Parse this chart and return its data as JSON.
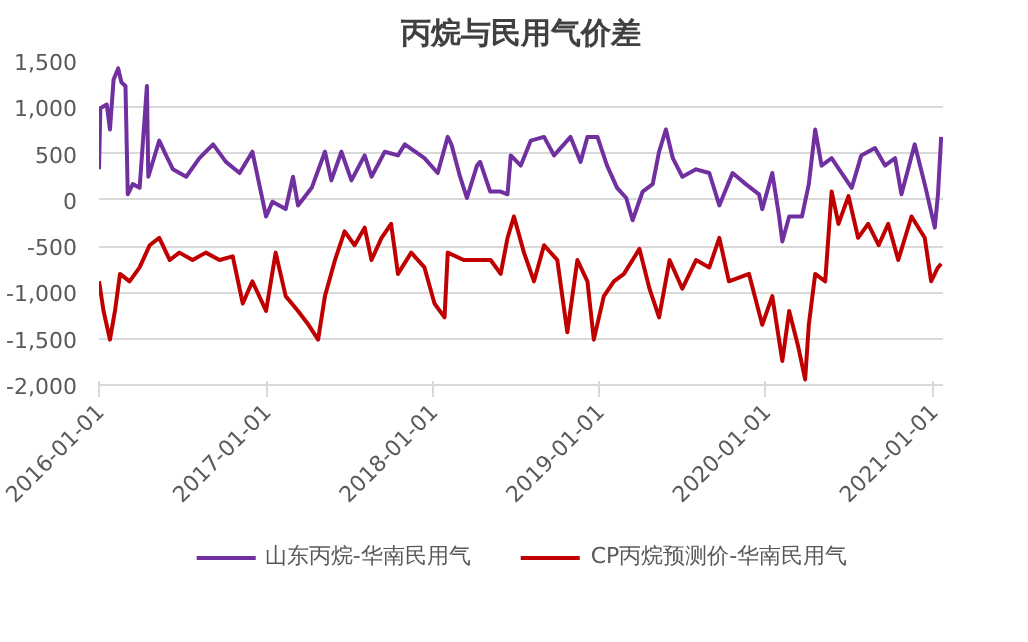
{
  "chart_data": {
    "type": "line",
    "title": "丙烷与民用气价差",
    "xlim": [
      "2016-01-01",
      "2021-01-23"
    ],
    "xticks": [
      "2016-01-01",
      "2017-01-01",
      "2018-01-01",
      "2019-01-01",
      "2020-01-01",
      "2021-01-01"
    ],
    "ylim": [
      -2000,
      1500
    ],
    "yticks": [
      {
        "value": -2000,
        "label": "-2,000"
      },
      {
        "value": -1500,
        "label": "-1,500"
      },
      {
        "value": -1000,
        "label": "-1,000"
      },
      {
        "value": -500,
        "label": "-500"
      },
      {
        "value": 0,
        "label": "0"
      },
      {
        "value": 500,
        "label": "500"
      },
      {
        "value": 1000,
        "label": "1,000"
      },
      {
        "value": 1500,
        "label": "1,500"
      }
    ],
    "grid": "y",
    "legend": "bottom",
    "line_style": "solid",
    "marker": "none",
    "series": [
      {
        "name": "山东丙烷-华南民用气",
        "color": "#7030a0",
        "x": [
          "2016-01-01",
          "2016-01-04",
          "2016-01-18",
          "2016-01-25",
          "2016-02-02",
          "2016-02-12",
          "2016-02-19",
          "2016-02-28",
          "2016-03-04",
          "2016-03-15",
          "2016-03-30",
          "2016-04-15",
          "2016-04-18",
          "2016-05-12",
          "2016-05-27",
          "2016-06-11",
          "2016-07-10",
          "2016-08-08",
          "2016-09-07",
          "2016-10-05",
          "2016-11-04",
          "2016-12-02",
          "2016-12-17",
          "2017-01-01",
          "2017-01-15",
          "2017-02-13",
          "2017-03-01",
          "2017-03-12",
          "2017-04-11",
          "2017-05-10",
          "2017-05-24",
          "2017-06-15",
          "2017-07-07",
          "2017-08-05",
          "2017-08-20",
          "2017-09-18",
          "2017-10-17",
          "2017-11-01",
          "2017-12-14",
          "2018-01-12",
          "2018-02-03",
          "2018-02-11",
          "2018-03-02",
          "2018-03-17",
          "2018-04-08",
          "2018-04-15",
          "2018-05-07",
          "2018-05-30",
          "2018-06-14",
          "2018-06-21",
          "2018-07-13",
          "2018-08-04",
          "2018-09-02",
          "2018-09-24",
          "2018-10-30",
          "2018-11-21",
          "2018-12-06",
          "2018-12-28",
          "2019-01-18",
          "2019-02-09",
          "2019-03-01",
          "2019-03-15",
          "2019-04-06",
          "2019-04-28",
          "2019-05-12",
          "2019-05-27",
          "2019-06-11",
          "2019-07-02",
          "2019-08-01",
          "2019-08-30",
          "2019-09-21",
          "2019-10-20",
          "2019-11-18",
          "2019-12-17",
          "2019-12-24",
          "2020-01-15",
          "2020-01-30",
          "2020-02-06",
          "2020-02-21",
          "2020-03-20",
          "2020-04-04",
          "2020-04-18",
          "2020-05-02",
          "2020-05-24",
          "2020-06-15",
          "2020-07-07",
          "2020-07-28",
          "2020-08-27",
          "2020-09-18",
          "2020-10-10",
          "2020-10-24",
          "2020-11-22",
          "2020-12-14",
          "2021-01-05",
          "2021-01-12",
          "2021-01-19"
        ],
        "values": [
          330,
          990,
          1030,
          760,
          1300,
          1420,
          1270,
          1230,
          60,
          170,
          130,
          1230,
          250,
          640,
          480,
          330,
          250,
          450,
          600,
          410,
          290,
          520,
          170,
          -180,
          -20,
          -100,
          250,
          -60,
          130,
          520,
          210,
          520,
          210,
          480,
          250,
          520,
          480,
          600,
          450,
          290,
          680,
          600,
          250,
          20,
          370,
          410,
          90,
          90,
          60,
          480,
          370,
          640,
          680,
          480,
          680,
          410,
          680,
          680,
          370,
          130,
          20,
          -220,
          90,
          170,
          520,
          760,
          450,
          250,
          330,
          290,
          -60,
          290,
          170,
          60,
          -100,
          290,
          -180,
          -450,
          -180,
          -180,
          170,
          760,
          370,
          450,
          290,
          130,
          480,
          560,
          370,
          450,
          60,
          600,
          170,
          -300,
          60,
          680
        ]
      },
      {
        "name": "CP丙烷预测价-华南民用气",
        "color": "#c00000",
        "x": [
          "2016-01-01",
          "2016-01-11",
          "2016-01-25",
          "2016-02-05",
          "2016-02-16",
          "2016-03-08",
          "2016-03-30",
          "2016-04-21",
          "2016-05-12",
          "2016-06-04",
          "2016-06-25",
          "2016-07-24",
          "2016-08-22",
          "2016-09-21",
          "2016-10-20",
          "2016-11-11",
          "2016-12-02",
          "2017-01-01",
          "2017-01-22",
          "2017-02-13",
          "2017-03-12",
          "2017-04-04",
          "2017-04-25",
          "2017-05-10",
          "2017-06-01",
          "2017-06-22",
          "2017-07-14",
          "2017-08-05",
          "2017-08-20",
          "2017-09-11",
          "2017-10-02",
          "2017-10-17",
          "2017-11-15",
          "2017-12-14",
          "2018-01-05",
          "2018-01-27",
          "2018-02-03",
          "2018-03-10",
          "2018-04-08",
          "2018-05-08",
          "2018-05-30",
          "2018-06-14",
          "2018-06-28",
          "2018-07-20",
          "2018-08-11",
          "2018-09-02",
          "2018-10-01",
          "2018-10-23",
          "2018-11-14",
          "2018-12-06",
          "2018-12-20",
          "2019-01-11",
          "2019-02-02",
          "2019-02-24",
          "2019-03-30",
          "2019-04-21",
          "2019-05-12",
          "2019-06-04",
          "2019-07-02",
          "2019-08-01",
          "2019-08-30",
          "2019-09-21",
          "2019-10-12",
          "2019-11-25",
          "2019-12-24",
          "2020-01-15",
          "2020-02-06",
          "2020-02-21",
          "2020-03-12",
          "2020-03-27",
          "2020-04-04",
          "2020-04-18",
          "2020-05-10",
          "2020-05-24",
          "2020-06-08",
          "2020-06-30",
          "2020-07-21",
          "2020-08-12",
          "2020-09-04",
          "2020-09-25",
          "2020-10-17",
          "2020-11-15",
          "2020-12-14",
          "2020-12-28",
          "2021-01-12",
          "2021-01-19"
        ],
        "values": [
          -880,
          -1200,
          -1510,
          -1200,
          -800,
          -880,
          -730,
          -490,
          -410,
          -650,
          -570,
          -650,
          -570,
          -650,
          -610,
          -1120,
          -880,
          -1200,
          -570,
          -1040,
          -1200,
          -1350,
          -1510,
          -1040,
          -650,
          -340,
          -490,
          -300,
          -650,
          -410,
          -260,
          -800,
          -570,
          -730,
          -1120,
          -1270,
          -570,
          -650,
          -650,
          -650,
          -800,
          -410,
          -180,
          -570,
          -880,
          -490,
          -650,
          -1430,
          -650,
          -880,
          -1510,
          -1040,
          -880,
          -800,
          -530,
          -960,
          -1270,
          -650,
          -960,
          -650,
          -730,
          -410,
          -880,
          -800,
          -1350,
          -1040,
          -1740,
          -1200,
          -1590,
          -1940,
          -1350,
          -800,
          -880,
          90,
          -260,
          40,
          -410,
          -260,
          -490,
          -260,
          -650,
          -180,
          -410,
          -880,
          -730,
          -690
        ]
      }
    ]
  }
}
